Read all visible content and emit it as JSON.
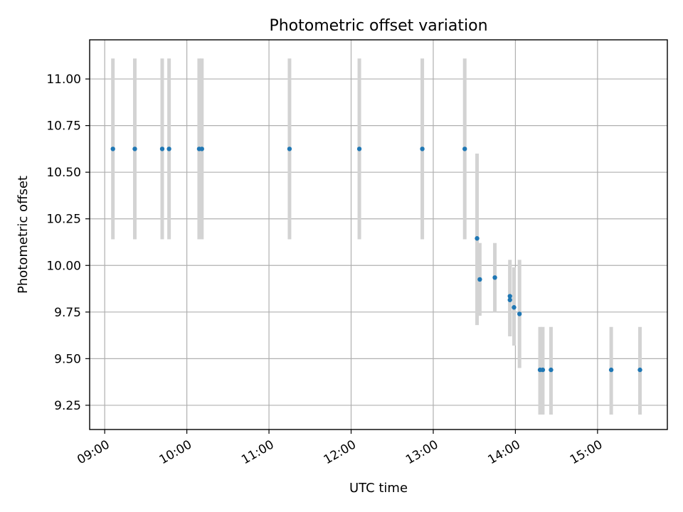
{
  "chart_data": {
    "type": "scatter",
    "title": "Photometric offset variation",
    "xlabel": "UTC time",
    "ylabel": "Photometric offset",
    "xlim": [
      "08:49",
      "15:51"
    ],
    "ylim": [
      9.12,
      11.21
    ],
    "x_ticks": [
      "09:00",
      "10:00",
      "11:00",
      "12:00",
      "13:00",
      "14:00",
      "15:00"
    ],
    "y_ticks": [
      "9.25",
      "9.50",
      "9.75",
      "10.00",
      "10.25",
      "10.50",
      "10.75",
      "11.00"
    ],
    "grid": true,
    "colors": {
      "point": "#1f77b4",
      "errorbar": "#d3d3d3"
    },
    "points": [
      {
        "x": "09:06",
        "y": 10.625,
        "ylow": 10.14,
        "yhigh": 11.11
      },
      {
        "x": "09:22",
        "y": 10.625,
        "ylow": 10.14,
        "yhigh": 11.11
      },
      {
        "x": "09:42",
        "y": 10.625,
        "ylow": 10.14,
        "yhigh": 11.11
      },
      {
        "x": "09:47",
        "y": 10.625,
        "ylow": 10.14,
        "yhigh": 11.11
      },
      {
        "x": "10:09",
        "y": 10.625,
        "ylow": 10.14,
        "yhigh": 11.11
      },
      {
        "x": "10:11",
        "y": 10.625,
        "ylow": 10.14,
        "yhigh": 11.11
      },
      {
        "x": "11:15",
        "y": 10.625,
        "ylow": 10.14,
        "yhigh": 11.11
      },
      {
        "x": "12:06",
        "y": 10.625,
        "ylow": 10.14,
        "yhigh": 11.11
      },
      {
        "x": "12:52",
        "y": 10.625,
        "ylow": 10.14,
        "yhigh": 11.11
      },
      {
        "x": "13:23",
        "y": 10.625,
        "ylow": 10.14,
        "yhigh": 11.11
      },
      {
        "x": "13:32",
        "y": 10.145,
        "ylow": 9.68,
        "yhigh": 10.6
      },
      {
        "x": "13:34",
        "y": 9.925,
        "ylow": 9.73,
        "yhigh": 10.12
      },
      {
        "x": "13:45",
        "y": 9.935,
        "ylow": 9.75,
        "yhigh": 10.12
      },
      {
        "x": "13:56",
        "y": 9.835,
        "ylow": 9.62,
        "yhigh": 10.03
      },
      {
        "x": "13:56",
        "y": 9.815,
        "ylow": 9.62,
        "yhigh": 10.0
      },
      {
        "x": "13:59",
        "y": 9.775,
        "ylow": 9.57,
        "yhigh": 9.99
      },
      {
        "x": "14:03",
        "y": 9.74,
        "ylow": 9.45,
        "yhigh": 10.03
      },
      {
        "x": "14:18",
        "y": 9.44,
        "ylow": 9.2,
        "yhigh": 9.67
      },
      {
        "x": "14:20",
        "y": 9.44,
        "ylow": 9.2,
        "yhigh": 9.67
      },
      {
        "x": "14:26",
        "y": 9.44,
        "ylow": 9.2,
        "yhigh": 9.67
      },
      {
        "x": "15:10",
        "y": 9.44,
        "ylow": 9.2,
        "yhigh": 9.67
      },
      {
        "x": "15:31",
        "y": 9.44,
        "ylow": 9.2,
        "yhigh": 9.67
      }
    ]
  }
}
